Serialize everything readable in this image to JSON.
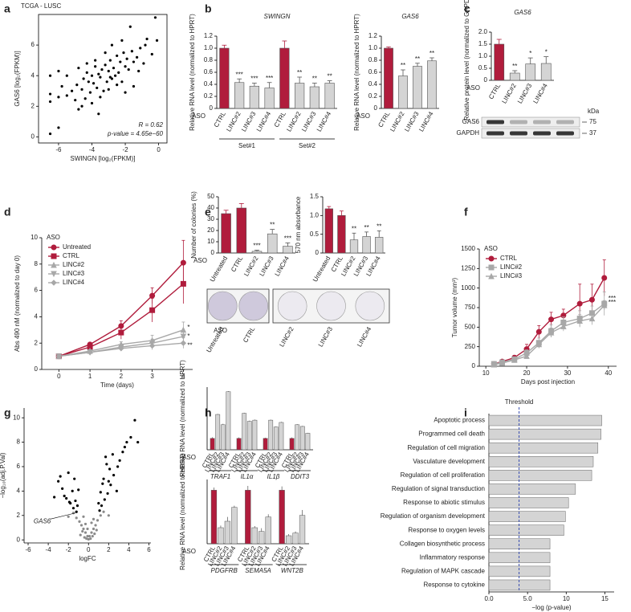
{
  "chart_data": [
    {
      "type": "scatter",
      "panel": "a",
      "title": "TCGA - LUSC",
      "x_label": "SWINGN [log₂(FPKM)]",
      "y_label": "GAS6 [log₂(FPKM)]",
      "annotations": [
        "R = 0.62",
        "p-value = 4.65e−60"
      ],
      "color": "#000000",
      "xlim": [
        -7.2,
        0.5
      ],
      "xticks": [
        -6,
        -4,
        -2,
        0
      ],
      "ylim": [
        -0.4,
        8
      ],
      "yticks": [
        0,
        2,
        4,
        6
      ],
      "x": [
        -6.5,
        -6.5,
        -6.5,
        -6.5,
        -6.0,
        -6.0,
        -5.8,
        -5.5,
        -5.2,
        -5.0,
        -4.9,
        -4.8,
        -4.6,
        -4.5,
        -4.4,
        -4.3,
        -4.2,
        -4.1,
        -4.0,
        -3.9,
        -3.8,
        -3.7,
        -3.6,
        -3.5,
        -3.4,
        -3.3,
        -3.2,
        -3.1,
        -3.0,
        -2.9,
        -2.8,
        -2.7,
        -2.6,
        -2.5,
        -2.4,
        -2.3,
        -2.2,
        -2.1,
        -2.0,
        -1.9,
        -1.8,
        -1.6,
        -1.5,
        -1.3,
        -1.1,
        -0.9,
        -0.7,
        -0.4,
        -0.2,
        -4.6,
        -4.0,
        -3.5,
        -3.0,
        -2.5,
        -3.8,
        -3.2,
        -2.8,
        -2.2,
        -1.7,
        -4.8,
        -5.5,
        -6.0,
        -1.2,
        -0.8,
        -0.1,
        -2.0,
        -3.6,
        -2.9,
        -4.3,
        -1.5
      ],
      "values": [
        0.2,
        2.8,
        2.3,
        4.0,
        2.6,
        0.6,
        3.3,
        2.7,
        3.0,
        2.4,
        3.4,
        1.8,
        3.1,
        3.8,
        2.5,
        4.2,
        3.6,
        2.9,
        4.0,
        3.5,
        4.6,
        3.2,
        4.1,
        3.9,
        4.4,
        3.0,
        4.7,
        3.6,
        4.3,
        5.0,
        3.8,
        4.5,
        4.0,
        5.3,
        4.2,
        4.9,
        3.6,
        5.5,
        4.6,
        5.1,
        4.4,
        5.6,
        4.9,
        5.2,
        5.8,
        4.8,
        6.4,
        5.4,
        7.8,
        2.0,
        2.2,
        2.6,
        3.1,
        3.4,
        5.0,
        5.5,
        6.0,
        6.3,
        7.2,
        4.5,
        4.0,
        4.3,
        4.3,
        6.0,
        6.3,
        2.9,
        1.5,
        3.9,
        4.8,
        3.3
      ]
    },
    {
      "type": "bar",
      "panel": "b",
      "title": "SWINGN",
      "y_label": "Relative RNA level (normalized to HPRT)",
      "prefix": "ASO",
      "categories": [
        "CTRL",
        "LINC#2",
        "LINC#3",
        "LINC#4",
        "CTRL",
        "LINC#2",
        "LINC#3",
        "LINC#4"
      ],
      "values": [
        1.0,
        0.43,
        0.37,
        0.34,
        1.0,
        0.42,
        0.36,
        0.42
      ],
      "errors": [
        0.05,
        0.06,
        0.05,
        0.09,
        0.12,
        0.1,
        0.06,
        0.04
      ],
      "significance": [
        null,
        "***",
        "***",
        "***",
        null,
        "**",
        "**",
        "**"
      ],
      "colors": [
        "#b01c3c",
        "#d4d4d4",
        "#d4d4d4",
        "#d4d4d4",
        "#b01c3c",
        "#d4d4d4",
        "#d4d4d4",
        "#d4d4d4"
      ],
      "group_labels": [
        "Set#1",
        "Set#2"
      ],
      "ylim": [
        0,
        1.2
      ],
      "yticks": [
        0,
        0.2,
        0.4,
        0.6,
        0.8,
        {
          "value": 1,
          "label": "1.0"
        },
        1.2
      ]
    },
    {
      "type": "bar",
      "title": "GAS6",
      "y_label": "Relative RNA level (normalized to HPRT)",
      "prefix": "ASO",
      "categories": [
        "CTRL",
        "LINC#2",
        "LINC#3",
        "LINC#4"
      ],
      "values": [
        1.0,
        0.54,
        0.7,
        0.79
      ],
      "errors": [
        0.02,
        0.1,
        0.05,
        0.05
      ],
      "significance": [
        null,
        "**",
        "**",
        "**"
      ],
      "colors": [
        "#b01c3c",
        "#d4d4d4",
        "#d4d4d4",
        "#d4d4d4"
      ],
      "ylim": [
        0,
        1.2
      ],
      "yticks": [
        0,
        0.2,
        0.4,
        0.6,
        0.8,
        {
          "value": 1,
          "label": "1.0"
        },
        1.2
      ]
    },
    {
      "type": "bar",
      "panel": "c",
      "title": "GAS6",
      "y_label": "Relative protein level (normalized to GAPDH)",
      "prefix": "ASO",
      "categories": [
        "CTRL",
        "LINC#2",
        "LINC#3",
        "LINC#4"
      ],
      "values": [
        1.5,
        0.3,
        0.68,
        0.7
      ],
      "errors": [
        0.2,
        0.1,
        0.25,
        0.28
      ],
      "significance": [
        null,
        "**",
        "*",
        "*"
      ],
      "colors": [
        "#b01c3c",
        "#d4d4d4",
        "#d4d4d4",
        "#d4d4d4"
      ],
      "ylim": [
        0,
        2
      ],
      "yticks": [
        0,
        0.5,
        {
          "value": 1,
          "label": "1.0"
        },
        1.5,
        {
          "value": 2,
          "label": "2.0"
        }
      ],
      "blot": {
        "rows": [
          "GAS6",
          "GAPDH"
        ],
        "unit": "kDa",
        "markers": [
          75,
          37
        ]
      }
    },
    {
      "type": "line",
      "panel": "d",
      "y_label": "Abs 490 nM (normalized to day 0)",
      "x_label": "Time (days)",
      "legend_title": "ASO",
      "legend": "upper left",
      "x": [
        0,
        1,
        2,
        3,
        4
      ],
      "xlim": [
        -0.55,
        4.3
      ],
      "xticks": [
        0,
        1,
        2,
        3,
        4
      ],
      "ylim": [
        0,
        10
      ],
      "yticks": [
        0,
        2,
        4,
        6,
        8,
        10
      ],
      "series": [
        {
          "name": "Untreated",
          "color": "#b01c3c",
          "marker": "circle",
          "values": [
            1,
            1.9,
            3.3,
            5.6,
            8.1
          ],
          "errors": [
            0.05,
            0.15,
            0.4,
            0.6,
            1.7
          ]
        },
        {
          "name": "CTRL",
          "color": "#b01c3c",
          "marker": "square",
          "values": [
            1,
            1.7,
            2.8,
            4.5,
            6.5
          ],
          "errors": [
            0.05,
            0.15,
            0.5,
            0.9,
            1.5
          ]
        },
        {
          "name": "LINC#2",
          "color": "#a8a8a8",
          "marker": "triangle",
          "values": [
            1,
            1.4,
            1.9,
            2.2,
            3.0
          ],
          "errors": [
            0.05,
            0.1,
            0.2,
            0.4,
            0.6
          ],
          "significance": "*"
        },
        {
          "name": "LINC#3",
          "color": "#a8a8a8",
          "marker": "triangle-down",
          "values": [
            1,
            1.3,
            1.7,
            2.0,
            2.5
          ],
          "errors": [
            0.05,
            0.1,
            0.2,
            0.3,
            0.4
          ],
          "significance": "*"
        },
        {
          "name": "LINC#4",
          "color": "#a8a8a8",
          "marker": "diamond",
          "values": [
            1,
            1.3,
            1.6,
            1.8,
            2.0
          ],
          "errors": [
            0.05,
            0.1,
            0.2,
            0.3,
            0.4
          ],
          "significance": "**"
        }
      ]
    },
    {
      "type": "bar",
      "panel": "e",
      "y_label": "Number of colonies (%)",
      "prefix": "ASO",
      "categories": [
        "Untreated",
        "CTRL",
        "LINC#2",
        "LINC#3",
        "LINC#4"
      ],
      "values": [
        35,
        40,
        1.5,
        17,
        6
      ],
      "errors": [
        3,
        4,
        1,
        4,
        3
      ],
      "significance": [
        null,
        null,
        "***",
        "**",
        "***"
      ],
      "colors": [
        "#b01c3c",
        "#b01c3c",
        "#d4d4d4",
        "#d4d4d4",
        "#d4d4d4"
      ],
      "ylim": [
        0,
        50
      ],
      "yticks": [
        0,
        10,
        20,
        30,
        40,
        50
      ]
    },
    {
      "type": "bar",
      "y_label": "570 nm absorbance",
      "categories": [
        "Untreated",
        "CTRL",
        "LINC#2",
        "LINC#3",
        "LINC#4"
      ],
      "values": [
        1.18,
        1.0,
        0.35,
        0.44,
        0.42
      ],
      "errors": [
        0.06,
        0.12,
        0.18,
        0.12,
        0.17
      ],
      "significance": [
        null,
        null,
        "**",
        "**",
        "**"
      ],
      "colors": [
        "#b01c3c",
        "#b01c3c",
        "#d4d4d4",
        "#d4d4d4",
        "#d4d4d4"
      ],
      "ylim": [
        0,
        1.5
      ],
      "yticks": [
        0,
        0.5,
        {
          "value": 1,
          "label": "1.0"
        },
        1.5
      ]
    },
    {
      "type": "line",
      "panel": "f",
      "y_label": "Tumor volume (mm³)",
      "x_label": "Days post injection",
      "legend_title": "ASO",
      "legend": "upper left",
      "x": [
        12,
        14,
        17,
        20,
        23,
        26,
        29,
        33,
        36,
        39
      ],
      "xlim": [
        8.4,
        42
      ],
      "xticks": [
        10,
        20,
        30,
        40
      ],
      "ylim": [
        0,
        1500
      ],
      "yticks": [
        0,
        250,
        500,
        750,
        1000,
        1250,
        1500
      ],
      "series": [
        {
          "name": "CTRL",
          "color": "#b01c3c",
          "marker": "circle",
          "values": [
            30,
            60,
            110,
            220,
            440,
            600,
            650,
            800,
            850,
            1130
          ],
          "errors": [
            10,
            20,
            30,
            60,
            80,
            90,
            80,
            250,
            200,
            230
          ]
        },
        {
          "name": "LINC#2",
          "color": "#a8a8a8",
          "marker": "square",
          "values": [
            30,
            50,
            90,
            170,
            300,
            450,
            560,
            610,
            680,
            800
          ],
          "errors": [
            10,
            15,
            20,
            40,
            60,
            80,
            70,
            100,
            90,
            150
          ],
          "significance": "***"
        },
        {
          "name": "LINC#3",
          "color": "#a8a8a8",
          "marker": "triangle",
          "values": [
            20,
            40,
            80,
            130,
            280,
            430,
            510,
            580,
            610,
            780
          ],
          "errors": [
            10,
            15,
            20,
            30,
            50,
            60,
            60,
            80,
            80,
            60
          ],
          "significance": "***"
        }
      ]
    },
    {
      "type": "scatter",
      "panel": "g",
      "x_label": "logFC",
      "y_label": "−log₁₀(adj.P.Val)",
      "annotations": [
        "GAS6"
      ],
      "xlim": [
        -6.4,
        6.2
      ],
      "xticks": [
        -6,
        -4,
        -2,
        0,
        2,
        4,
        6
      ],
      "ylim": [
        -0.25,
        10.8
      ],
      "yticks": [
        0,
        2,
        4,
        6,
        8,
        10
      ],
      "series": [
        {
          "color": "#8a8a8a",
          "x": [
            -0.9,
            -0.7,
            -0.5,
            -0.3,
            -0.1,
            0.1,
            0.3,
            0.5,
            0.7,
            0.9,
            -0.8,
            -0.6,
            -0.4,
            -0.2,
            0,
            0.2,
            0.4,
            0.6,
            0.8,
            -1.2,
            1.2,
            -1.5,
            1.5,
            -0.5,
            0.5,
            -0.3,
            0.3,
            -2,
            2,
            -0.1
          ],
          "values": [
            1.5,
            1.2,
            0.9,
            0.6,
            0.3,
            0.3,
            0.6,
            0.9,
            1.2,
            1.6,
            0.4,
            0.7,
            0.2,
            0.1,
            0.05,
            0.1,
            0.3,
            0.5,
            0.8,
            1.8,
            2.0,
            2.2,
            2.3,
            1.9,
            1.7,
            1.3,
            1.4,
            1.9,
            2.0,
            0.9
          ]
        },
        {
          "color": "#000000",
          "x": [
            -1.2,
            -1.5,
            -1.8,
            -2.2,
            -2.6,
            -3.0,
            -1.3,
            -1.6,
            -2.0,
            -2.4,
            -1.4,
            -1.1,
            -3.4,
            -2.8,
            1.1,
            1.3,
            1.6,
            1.9,
            2.2,
            2.5,
            2.8,
            3.1,
            3.4,
            3.8,
            4.2,
            1.2,
            1.5,
            1.8,
            2.1,
            2.4,
            2.9,
            3.6,
            4.6,
            1.4,
            1.7,
            2.0,
            -1.9,
            4.9,
            1.0,
            -1.0
          ],
          "values": [
            2.3,
            2.6,
            3.0,
            3.4,
            4.2,
            4.8,
            3.2,
            4.0,
            5.5,
            3.6,
            5.0,
            2.8,
            3.5,
            5.2,
            2.4,
            2.8,
            3.3,
            3.8,
            4.5,
            5.3,
            4.0,
            6.5,
            7.2,
            8.0,
            8.4,
            3.9,
            5.0,
            6.2,
            5.8,
            7.0,
            6.0,
            7.6,
            9.8,
            4.6,
            6.8,
            4.8,
            3.1,
            8.0,
            3.0,
            4.1
          ]
        }
      ]
    },
    {
      "type": "grouped_bar",
      "panel": "h",
      "y_label": "Relative RNA level (normalized to HPRT)",
      "prefix": "ASO",
      "groups": [
        "TRAF1",
        "IL1α",
        "IL1β",
        "DDIT3"
      ],
      "categories": [
        "CTRL",
        "LINC#2",
        "LINC#3",
        "LINC#4"
      ],
      "colors": [
        "#b01c3c",
        "#d4d4d4",
        "#d4d4d4",
        "#d4d4d4"
      ],
      "ylim": [
        0,
        5.5
      ],
      "values": [
        [
          1,
          3.1,
          2.2,
          5.1
        ],
        [
          1,
          3.2,
          2.5,
          2.6
        ],
        [
          1,
          2.6,
          2.0,
          2.4
        ],
        [
          1,
          2.2,
          2.05,
          1.45
        ]
      ],
      "errors": [
        [
          0.1,
          0.05,
          0.08,
          0.05
        ],
        [
          0.08,
          0.05,
          0.06,
          0.05
        ],
        [
          0.06,
          0.05,
          0.05,
          0.05
        ],
        [
          0.08,
          0.05,
          0.05,
          0.04
        ]
      ]
    },
    {
      "type": "grouped_bar",
      "y_label": "Relative RNA level (normalized to HPRT)",
      "prefix": "ASO",
      "groups": [
        "PDGFRB",
        "SEMA5A",
        "WNT2B"
      ],
      "categories": [
        "CTRL",
        "LINC#2",
        "LINC#3",
        "LINC#4"
      ],
      "colors": [
        "#b01c3c",
        "#d4d4d4",
        "#d4d4d4",
        "#d4d4d4"
      ],
      "ylim": [
        0,
        1.2
      ],
      "values": [
        [
          1,
          0.3,
          0.42,
          0.68
        ],
        [
          1,
          0.3,
          0.23,
          0.5
        ],
        [
          1,
          0.15,
          0.2,
          0.53
        ]
      ],
      "errors": [
        [
          0.05,
          0.04,
          0.08,
          0.03
        ],
        [
          0.08,
          0.03,
          0.06,
          0.05
        ],
        [
          0.07,
          0.03,
          0.03,
          0.1
        ]
      ]
    },
    {
      "type": "hbar",
      "panel": "i",
      "x_label": "−log (p-value)",
      "color": "#d4d4d4",
      "threshold": {
        "label": "Threshold",
        "value": 3.9
      },
      "xlim": [
        0,
        16.2
      ],
      "xticks": [
        {
          "value": 0,
          "label": "0.0"
        },
        {
          "value": 5,
          "label": "5.0"
        },
        10,
        15
      ],
      "categories": [
        "Apoptotic process",
        "Programmed cell death",
        "Regulation of cell migration",
        "Vasculature development",
        "Regulation of cell proliferation",
        "Regulation of signal transduction",
        "Response to abiotic stimulus",
        "Regulation of organism development",
        "Response to oxygen levels",
        "Collagen biosynthetic process",
        "Inflammatory response",
        "Regulation of MAPK cascade",
        "Response to cytokine"
      ],
      "values": [
        14.6,
        14.5,
        14.1,
        13.5,
        13.3,
        11.2,
        10.3,
        9.9,
        9.7,
        7.9,
        7.9,
        7.9,
        7.9
      ]
    }
  ]
}
